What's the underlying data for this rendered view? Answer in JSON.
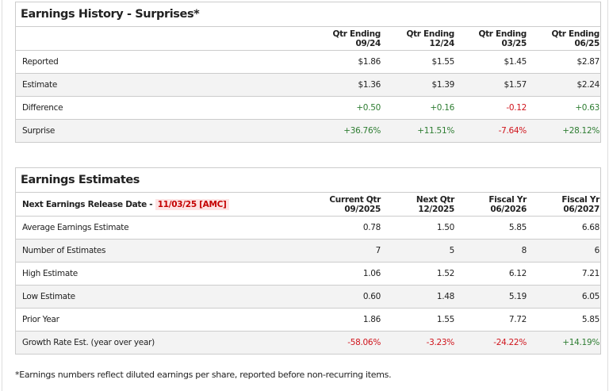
{
  "history": {
    "title": "Earnings History - Surprises*",
    "columns": [
      [
        "Qtr Ending",
        "09/24"
      ],
      [
        "Qtr Ending",
        "12/24"
      ],
      [
        "Qtr Ending",
        "03/25"
      ],
      [
        "Qtr Ending",
        "06/25"
      ]
    ],
    "rows": [
      {
        "label": "Reported",
        "values": [
          "$1.86",
          "$1.55",
          "$1.45",
          "$2.87"
        ]
      },
      {
        "label": "Estimate",
        "values": [
          "$1.36",
          "$1.39",
          "$1.57",
          "$2.24"
        ]
      },
      {
        "label": "Difference",
        "values": [
          "+0.50",
          "+0.16",
          "-0.12",
          "+0.63"
        ]
      },
      {
        "label": "Surprise",
        "values": [
          "+36.76%",
          "+11.51%",
          "-7.64%",
          "+28.12%"
        ]
      }
    ]
  },
  "estimates": {
    "title": "Earnings Estimates",
    "release_label": "Next Earnings Release Date - ",
    "release_date": "11/03/25 [AMC]",
    "columns": [
      [
        "Current Qtr",
        "09/2025"
      ],
      [
        "Next Qtr",
        "12/2025"
      ],
      [
        "Fiscal Yr",
        "06/2026"
      ],
      [
        "Fiscal Yr",
        "06/2027"
      ]
    ],
    "rows": [
      {
        "label": "Average Earnings Estimate",
        "values": [
          "0.78",
          "1.50",
          "5.85",
          "6.68"
        ]
      },
      {
        "label": "Number of Estimates",
        "values": [
          "7",
          "5",
          "8",
          "6"
        ]
      },
      {
        "label": "High Estimate",
        "values": [
          "1.06",
          "1.52",
          "6.12",
          "7.21"
        ]
      },
      {
        "label": "Low Estimate",
        "values": [
          "0.60",
          "1.48",
          "5.19",
          "6.05"
        ]
      },
      {
        "label": "Prior Year",
        "values": [
          "1.86",
          "1.55",
          "7.72",
          "5.85"
        ]
      },
      {
        "label": "Growth Rate Est. (year over year)",
        "values": [
          "-58.06%",
          "-3.23%",
          "-24.22%",
          "+14.19%"
        ]
      }
    ]
  },
  "footnote": "*Earnings numbers reflect diluted earnings per share, reported before non-recurring items.",
  "colors": {
    "positive": "#2e7d32",
    "negative": "#d0141c"
  }
}
